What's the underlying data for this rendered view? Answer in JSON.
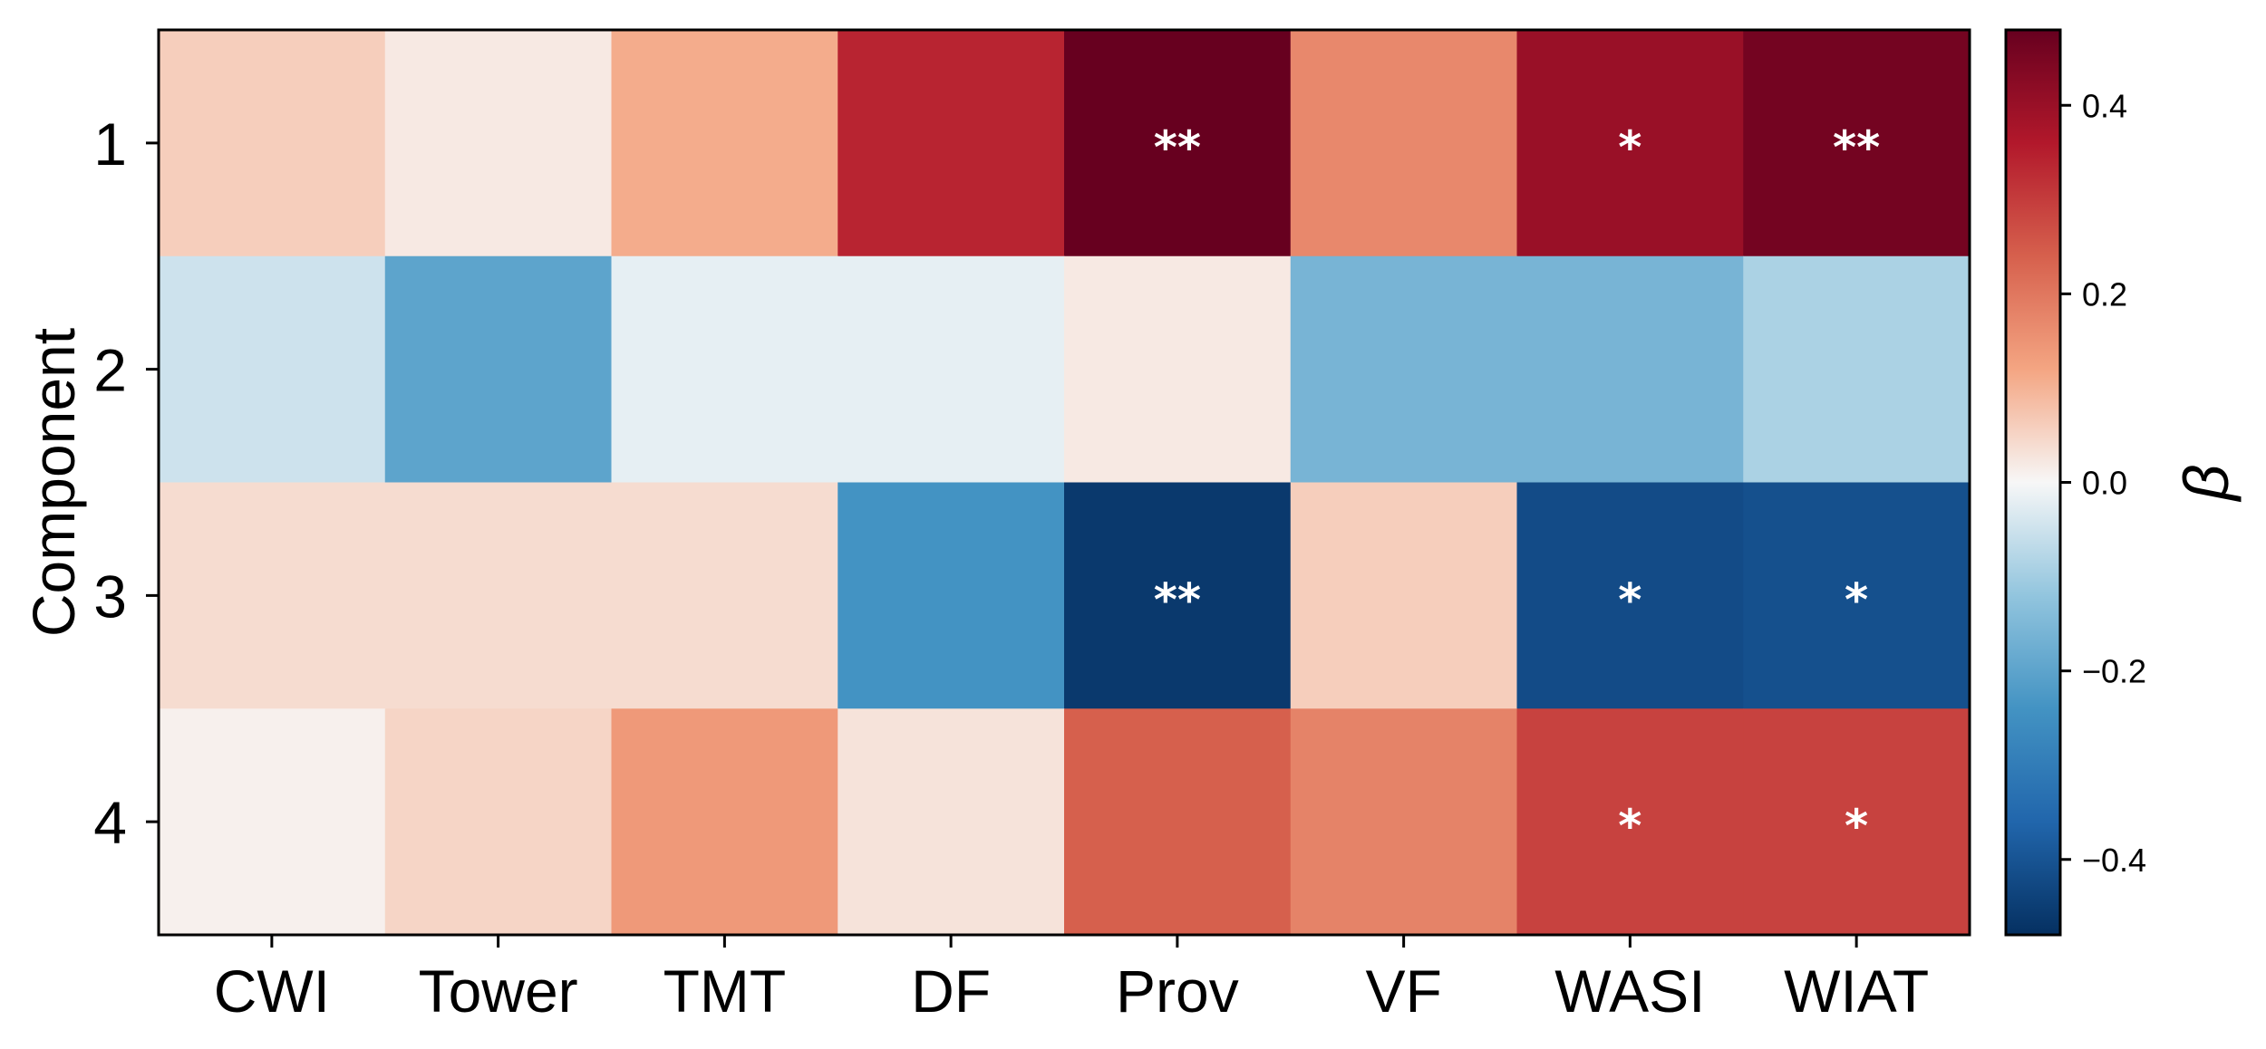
{
  "chart_data": {
    "type": "heatmap",
    "title": "",
    "xlabel": "",
    "ylabel": "Component",
    "colorbar_label": "β",
    "x_categories": [
      "CWI",
      "Tower",
      "TMT",
      "DF",
      "Prov",
      "VF",
      "WASI",
      "WIAT"
    ],
    "y_categories": [
      "1",
      "2",
      "3",
      "4"
    ],
    "values": [
      [
        0.06,
        0.02,
        0.11,
        0.34,
        0.48,
        0.17,
        0.4,
        0.46
      ],
      [
        -0.05,
        -0.2,
        -0.02,
        -0.02,
        0.02,
        -0.16,
        -0.16,
        -0.09
      ],
      [
        0.04,
        0.04,
        0.04,
        -0.24,
        -0.46,
        0.06,
        -0.42,
        -0.41
      ],
      [
        0.01,
        0.05,
        0.14,
        0.03,
        0.24,
        0.18,
        0.29,
        0.29
      ]
    ],
    "annotations": [
      [
        "",
        "",
        "",
        "",
        "**",
        "",
        "*",
        "**"
      ],
      [
        "",
        "",
        "",
        "",
        "",
        "",
        "",
        ""
      ],
      [
        "",
        "",
        "",
        "",
        "**",
        "",
        "*",
        "*"
      ],
      [
        "",
        "",
        "",
        "",
        "",
        "",
        "*",
        "*"
      ]
    ],
    "vmin": -0.48,
    "vmax": 0.48,
    "colormap": "RdBu_r",
    "colorbar_ticks": [
      {
        "value": 0.4,
        "label": "0.4"
      },
      {
        "value": 0.2,
        "label": "0.2"
      },
      {
        "value": 0.0,
        "label": "0.0"
      },
      {
        "value": -0.2,
        "label": "−0.2"
      },
      {
        "value": -0.4,
        "label": "−0.4"
      }
    ],
    "grid": false
  }
}
